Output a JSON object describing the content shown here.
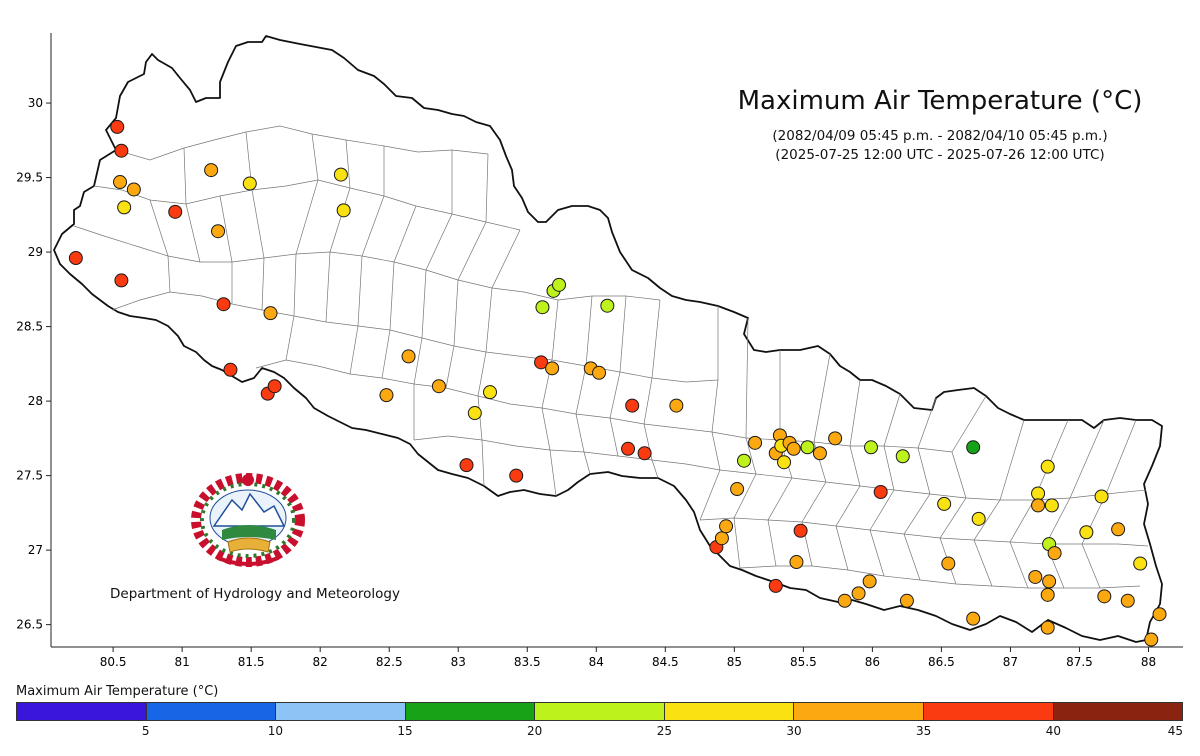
{
  "title": "Maximum Air Temperature (°C)",
  "subtitle_nepali": "(2082/04/09 05:45 p.m. - 2082/04/10 05:45 p.m.)",
  "subtitle_utc": "(2025-07-25 12:00 UTC - 2025-07-26 12:00 UTC)",
  "organization": "Department of Hydrology and Meteorology",
  "chart_data": {
    "type": "scatter",
    "x_ticks": [
      "80.5",
      "81",
      "81.5",
      "82",
      "82.5",
      "83",
      "83.5",
      "84",
      "84.5",
      "85",
      "85.5",
      "86",
      "86.5",
      "87",
      "87.5",
      "88"
    ],
    "y_ticks": [
      "26.5",
      "27",
      "27.5",
      "28",
      "28.5",
      "29",
      "29.5",
      "30"
    ],
    "xlim": [
      80.05,
      88.25
    ],
    "ylim": [
      26.35,
      30.47
    ],
    "legend": {
      "title": "Maximum Air Temperature (°C)",
      "ticks": [
        "5",
        "10",
        "15",
        "20",
        "25",
        "30",
        "35",
        "40",
        "45"
      ],
      "colors": [
        "#3a16dc",
        "#1766e6",
        "#8ec4f5",
        "#17a317",
        "#bdf21d",
        "#fae212",
        "#fba811",
        "#fa3a10",
        "#8a2410"
      ]
    },
    "stations": [
      {
        "lon": 80.53,
        "lat": 29.84,
        "value": 37
      },
      {
        "lon": 80.56,
        "lat": 29.68,
        "value": 37
      },
      {
        "lon": 80.55,
        "lat": 29.47,
        "value": 32
      },
      {
        "lon": 80.65,
        "lat": 29.42,
        "value": 32
      },
      {
        "lon": 80.58,
        "lat": 29.3,
        "value": 28
      },
      {
        "lon": 80.23,
        "lat": 28.96,
        "value": 37
      },
      {
        "lon": 80.56,
        "lat": 28.81,
        "value": 37
      },
      {
        "lon": 80.95,
        "lat": 29.27,
        "value": 37
      },
      {
        "lon": 81.21,
        "lat": 29.55,
        "value": 32
      },
      {
        "lon": 81.26,
        "lat": 29.14,
        "value": 32
      },
      {
        "lon": 81.49,
        "lat": 29.46,
        "value": 28
      },
      {
        "lon": 82.15,
        "lat": 29.52,
        "value": 28
      },
      {
        "lon": 82.17,
        "lat": 29.28,
        "value": 28
      },
      {
        "lon": 81.3,
        "lat": 28.65,
        "value": 37
      },
      {
        "lon": 81.64,
        "lat": 28.59,
        "value": 32
      },
      {
        "lon": 81.35,
        "lat": 28.21,
        "value": 37
      },
      {
        "lon": 81.62,
        "lat": 28.05,
        "value": 37
      },
      {
        "lon": 81.67,
        "lat": 28.1,
        "value": 37
      },
      {
        "lon": 82.48,
        "lat": 28.04,
        "value": 32
      },
      {
        "lon": 82.64,
        "lat": 28.3,
        "value": 32
      },
      {
        "lon": 82.86,
        "lat": 28.1,
        "value": 32
      },
      {
        "lon": 83.12,
        "lat": 27.92,
        "value": 28
      },
      {
        "lon": 83.23,
        "lat": 28.06,
        "value": 28
      },
      {
        "lon": 83.06,
        "lat": 27.57,
        "value": 37
      },
      {
        "lon": 83.42,
        "lat": 27.5,
        "value": 37
      },
      {
        "lon": 83.61,
        "lat": 28.63,
        "value": 23
      },
      {
        "lon": 83.69,
        "lat": 28.74,
        "value": 23
      },
      {
        "lon": 83.73,
        "lat": 28.78,
        "value": 23
      },
      {
        "lon": 84.08,
        "lat": 28.64,
        "value": 23
      },
      {
        "lon": 83.6,
        "lat": 28.26,
        "value": 37
      },
      {
        "lon": 83.68,
        "lat": 28.22,
        "value": 32
      },
      {
        "lon": 83.96,
        "lat": 28.22,
        "value": 32
      },
      {
        "lon": 84.02,
        "lat": 28.19,
        "value": 32
      },
      {
        "lon": 84.26,
        "lat": 27.97,
        "value": 37
      },
      {
        "lon": 84.58,
        "lat": 27.97,
        "value": 32
      },
      {
        "lon": 84.23,
        "lat": 27.68,
        "value": 37
      },
      {
        "lon": 84.35,
        "lat": 27.65,
        "value": 37
      },
      {
        "lon": 84.87,
        "lat": 27.02,
        "value": 37
      },
      {
        "lon": 84.91,
        "lat": 27.08,
        "value": 32
      },
      {
        "lon": 84.94,
        "lat": 27.16,
        "value": 32
      },
      {
        "lon": 85.02,
        "lat": 27.41,
        "value": 32
      },
      {
        "lon": 85.07,
        "lat": 27.6,
        "value": 23
      },
      {
        "lon": 85.15,
        "lat": 27.72,
        "value": 32
      },
      {
        "lon": 85.3,
        "lat": 27.65,
        "value": 32
      },
      {
        "lon": 85.33,
        "lat": 27.77,
        "value": 32
      },
      {
        "lon": 85.34,
        "lat": 27.7,
        "value": 28
      },
      {
        "lon": 85.36,
        "lat": 27.59,
        "value": 28
      },
      {
        "lon": 85.4,
        "lat": 27.72,
        "value": 32
      },
      {
        "lon": 85.43,
        "lat": 27.68,
        "value": 32
      },
      {
        "lon": 85.53,
        "lat": 27.69,
        "value": 23
      },
      {
        "lon": 85.62,
        "lat": 27.65,
        "value": 32
      },
      {
        "lon": 85.73,
        "lat": 27.75,
        "value": 32
      },
      {
        "lon": 85.99,
        "lat": 27.69,
        "value": 23
      },
      {
        "lon": 86.22,
        "lat": 27.63,
        "value": 23
      },
      {
        "lon": 86.06,
        "lat": 27.39,
        "value": 37
      },
      {
        "lon": 86.73,
        "lat": 27.69,
        "value": 18
      },
      {
        "lon": 85.48,
        "lat": 27.13,
        "value": 37
      },
      {
        "lon": 85.45,
        "lat": 26.92,
        "value": 32
      },
      {
        "lon": 85.3,
        "lat": 26.76,
        "value": 37
      },
      {
        "lon": 85.8,
        "lat": 26.66,
        "value": 32
      },
      {
        "lon": 85.9,
        "lat": 26.71,
        "value": 32
      },
      {
        "lon": 85.98,
        "lat": 26.79,
        "value": 32
      },
      {
        "lon": 86.25,
        "lat": 26.66,
        "value": 32
      },
      {
        "lon": 86.55,
        "lat": 26.91,
        "value": 32
      },
      {
        "lon": 86.52,
        "lat": 27.31,
        "value": 28
      },
      {
        "lon": 86.73,
        "lat": 26.54,
        "value": 32
      },
      {
        "lon": 86.77,
        "lat": 27.21,
        "value": 28
      },
      {
        "lon": 87.18,
        "lat": 26.82,
        "value": 32
      },
      {
        "lon": 87.2,
        "lat": 27.38,
        "value": 28
      },
      {
        "lon": 87.2,
        "lat": 27.3,
        "value": 32
      },
      {
        "lon": 87.27,
        "lat": 27.56,
        "value": 28
      },
      {
        "lon": 87.3,
        "lat": 27.3,
        "value": 28
      },
      {
        "lon": 87.28,
        "lat": 27.04,
        "value": 23
      },
      {
        "lon": 87.32,
        "lat": 26.98,
        "value": 32
      },
      {
        "lon": 87.28,
        "lat": 26.79,
        "value": 32
      },
      {
        "lon": 87.27,
        "lat": 26.7,
        "value": 32
      },
      {
        "lon": 87.27,
        "lat": 26.48,
        "value": 32
      },
      {
        "lon": 87.55,
        "lat": 27.12,
        "value": 28
      },
      {
        "lon": 87.66,
        "lat": 27.36,
        "value": 28
      },
      {
        "lon": 87.68,
        "lat": 26.69,
        "value": 32
      },
      {
        "lon": 87.78,
        "lat": 27.14,
        "value": 32
      },
      {
        "lon": 87.85,
        "lat": 26.66,
        "value": 32
      },
      {
        "lon": 87.94,
        "lat": 26.91,
        "value": 28
      },
      {
        "lon": 88.02,
        "lat": 26.4,
        "value": 32
      },
      {
        "lon": 88.08,
        "lat": 26.57,
        "value": 32
      }
    ]
  }
}
